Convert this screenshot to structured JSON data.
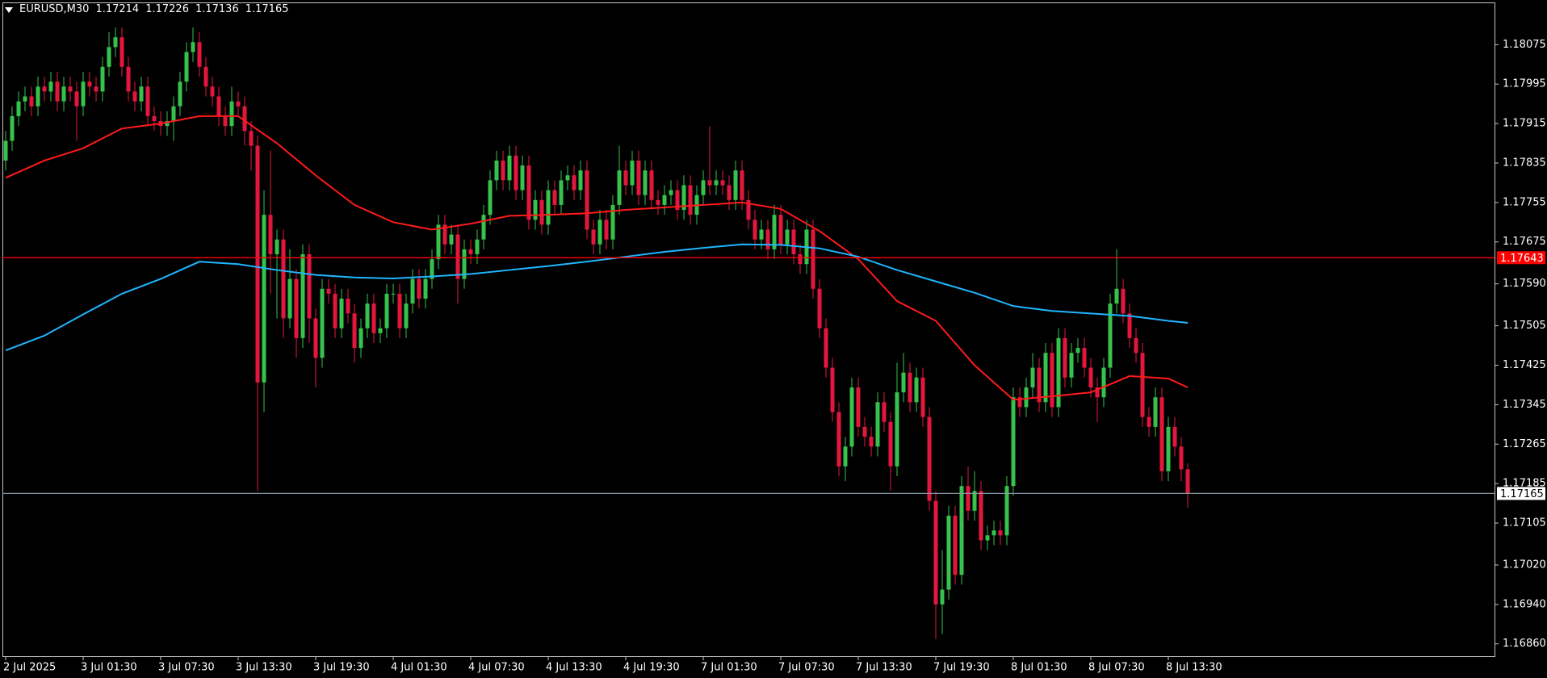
{
  "chart_data": {
    "type": "candlestick",
    "symbol": "EURUSD,M30",
    "ohlc": [
      1.17214,
      1.17226,
      1.17136,
      1.17165
    ],
    "up_color": "#36c24c",
    "down_color": "#e3173e",
    "categories": [
      "2 Jul 2025",
      null,
      null,
      null,
      null,
      null,
      null,
      null,
      null,
      null,
      null,
      null,
      "3 Jul 01:30",
      null,
      null,
      null,
      null,
      null,
      null,
      null,
      null,
      null,
      null,
      null,
      "3 Jul 07:30",
      null,
      null,
      null,
      null,
      null,
      null,
      null,
      null,
      null,
      null,
      null,
      "3 Jul 13:30",
      null,
      null,
      null,
      null,
      null,
      null,
      null,
      null,
      null,
      null,
      null,
      "3 Jul 19:30",
      null,
      null,
      null,
      null,
      null,
      null,
      null,
      null,
      null,
      null,
      null,
      "4 Jul 01:30",
      null,
      null,
      null,
      null,
      null,
      null,
      null,
      null,
      null,
      null,
      null,
      "4 Jul 07:30",
      null,
      null,
      null,
      null,
      null,
      null,
      null,
      null,
      null,
      null,
      null,
      "4 Jul 13:30",
      null,
      null,
      null,
      null,
      null,
      null,
      null,
      null,
      null,
      null,
      null,
      "4 Jul 19:30",
      null,
      null,
      null,
      null,
      null,
      null,
      null,
      null,
      null,
      null,
      null,
      "7 Jul 01:30",
      null,
      null,
      null,
      null,
      null,
      null,
      null,
      null,
      null,
      null,
      null,
      "7 Jul 07:30",
      null,
      null,
      null,
      null,
      null,
      null,
      null,
      null,
      null,
      null,
      null,
      "7 Jul 13:30",
      null,
      null,
      null,
      null,
      null,
      null,
      null,
      null,
      null,
      null,
      null,
      "7 Jul 19:30",
      null,
      null,
      null,
      null,
      null,
      null,
      null,
      null,
      null,
      null,
      null,
      "8 Jul 01:30",
      null,
      null,
      null,
      null,
      null,
      null,
      null,
      null,
      null,
      null,
      null,
      "8 Jul 07:30",
      null,
      null,
      null,
      null,
      null,
      null,
      null,
      null,
      null,
      null,
      null,
      "8 Jul 13:30",
      null,
      null,
      null
    ],
    "open": [
      1.1784,
      1.1788,
      1.1793,
      1.1796,
      1.1797,
      1.1795,
      1.1799,
      1.1798,
      1.18,
      1.1796,
      1.1799,
      1.1798,
      1.1795,
      1.18,
      1.1799,
      1.1798,
      1.1803,
      1.1807,
      1.1809,
      1.1803,
      1.1798,
      1.1796,
      1.1799,
      1.1793,
      1.1792,
      1.1791,
      1.1792,
      1.1795,
      1.18,
      1.1806,
      1.1808,
      1.1803,
      1.1799,
      1.1797,
      1.1793,
      1.1791,
      1.1796,
      1.1795,
      1.179,
      1.1787,
      1.1739,
      1.1773,
      1.1765,
      1.1768,
      1.1752,
      1.176,
      1.1748,
      1.1765,
      1.1752,
      1.1744,
      1.1758,
      1.1757,
      1.175,
      1.1756,
      1.1753,
      1.1746,
      1.175,
      1.1755,
      1.1749,
      1.175,
      1.1757,
      1.1757,
      1.175,
      1.1755,
      1.176,
      1.1756,
      1.176,
      1.1764,
      1.1771,
      1.1767,
      1.1769,
      1.176,
      1.1766,
      1.1765,
      1.1768,
      1.1773,
      1.178,
      1.1784,
      1.178,
      1.1785,
      1.1778,
      1.1783,
      1.1772,
      1.1776,
      1.1771,
      1.1778,
      1.1775,
      1.178,
      1.1781,
      1.1778,
      1.1782,
      1.177,
      1.1767,
      1.1772,
      1.1768,
      1.1775,
      1.1782,
      1.1779,
      1.1784,
      1.1777,
      1.1782,
      1.1776,
      1.1775,
      1.1777,
      1.1778,
      1.1774,
      1.1779,
      1.1773,
      1.1777,
      1.178,
      1.1779,
      1.178,
      1.1779,
      1.1776,
      1.1782,
      1.1776,
      1.1772,
      1.1768,
      1.177,
      1.1766,
      1.1773,
      1.1767,
      1.177,
      1.1765,
      1.1763,
      1.177,
      1.1758,
      1.175,
      1.1742,
      1.1733,
      1.1722,
      1.1726,
      1.1738,
      1.173,
      1.1728,
      1.1726,
      1.1735,
      1.1731,
      1.1722,
      1.1737,
      1.1741,
      1.1735,
      1.174,
      1.1732,
      1.1715,
      1.1694,
      1.1697,
      1.1712,
      1.17,
      1.1718,
      1.1713,
      1.1717,
      1.1707,
      1.1708,
      1.1709,
      1.1708,
      1.1718,
      1.1736,
      1.1734,
      1.1738,
      1.1742,
      1.1735,
      1.1745,
      1.1734,
      1.1748,
      1.174,
      1.1745,
      1.1746,
      1.1742,
      1.1738,
      1.1736,
      1.1742,
      1.1755,
      1.1758,
      1.1753,
      1.1748,
      1.1745,
      1.1732,
      1.173,
      1.1736,
      1.1721,
      1.173,
      1.1726,
      1.17214
    ],
    "high": [
      1.179,
      1.1795,
      1.1798,
      1.1799,
      1.1799,
      1.1801,
      1.1801,
      1.1802,
      1.1802,
      1.1801,
      1.1801,
      1.18,
      1.1802,
      1.1802,
      1.1801,
      1.1805,
      1.181,
      1.1811,
      1.1811,
      1.1805,
      1.18,
      1.1801,
      1.1801,
      1.1795,
      1.1794,
      1.1794,
      1.1797,
      1.1802,
      1.1808,
      1.1811,
      1.181,
      1.1805,
      1.1801,
      1.1799,
      1.1795,
      1.1799,
      1.1798,
      1.1797,
      1.1792,
      1.1789,
      1.1778,
      1.1786,
      1.177,
      1.177,
      1.1766,
      1.1762,
      1.1767,
      1.1767,
      1.1754,
      1.176,
      1.176,
      1.1759,
      1.1758,
      1.1758,
      1.1755,
      1.1752,
      1.1757,
      1.1757,
      1.1752,
      1.1759,
      1.1759,
      1.1759,
      1.1757,
      1.1762,
      1.1762,
      1.1762,
      1.1766,
      1.1773,
      1.1773,
      1.1771,
      1.1771,
      1.1768,
      1.1768,
      1.177,
      1.1775,
      1.1782,
      1.1786,
      1.1786,
      1.1787,
      1.1787,
      1.1785,
      1.1785,
      1.1778,
      1.1778,
      1.178,
      1.178,
      1.1782,
      1.1783,
      1.1783,
      1.1784,
      1.1784,
      1.1772,
      1.1774,
      1.1774,
      1.1777,
      1.1787,
      1.1784,
      1.1786,
      1.1786,
      1.1784,
      1.1784,
      1.1778,
      1.1779,
      1.178,
      1.178,
      1.1781,
      1.1781,
      1.1779,
      1.1782,
      1.1791,
      1.1782,
      1.1782,
      1.1781,
      1.1784,
      1.1784,
      1.1778,
      1.1774,
      1.1772,
      1.1772,
      1.1775,
      1.1775,
      1.1772,
      1.1772,
      1.1767,
      1.1772,
      1.1772,
      1.176,
      1.1752,
      1.1744,
      1.1735,
      1.1728,
      1.174,
      1.174,
      1.1732,
      1.173,
      1.1737,
      1.1737,
      1.1733,
      1.1743,
      1.1745,
      1.1743,
      1.1742,
      1.1742,
      1.1734,
      1.1717,
      1.1705,
      1.1714,
      1.1714,
      1.172,
      1.1722,
      1.1721,
      1.1719,
      1.171,
      1.1711,
      1.1711,
      1.172,
      1.1738,
      1.1738,
      1.174,
      1.1745,
      1.1744,
      1.1747,
      1.1747,
      1.175,
      1.175,
      1.1747,
      1.1748,
      1.1748,
      1.1744,
      1.174,
      1.1744,
      1.1757,
      1.1766,
      1.176,
      1.1755,
      1.175,
      1.1747,
      1.1734,
      1.1738,
      1.1738,
      1.1732,
      1.1732,
      1.1728,
      1.17226
    ],
    "low": [
      1.1782,
      1.1786,
      1.1791,
      1.1794,
      1.1793,
      1.1793,
      1.1796,
      1.1796,
      1.1794,
      1.1794,
      1.1796,
      1.1788,
      1.1793,
      1.1797,
      1.1796,
      1.1796,
      1.1801,
      1.1805,
      1.1801,
      1.1796,
      1.1794,
      1.1794,
      1.1791,
      1.179,
      1.1789,
      1.1789,
      1.1788,
      1.1793,
      1.1798,
      1.1804,
      1.1801,
      1.1797,
      1.1795,
      1.1791,
      1.1789,
      1.1789,
      1.1793,
      1.1787,
      1.1782,
      1.1717,
      1.1733,
      1.1757,
      1.1752,
      1.1748,
      1.175,
      1.1744,
      1.1746,
      1.1747,
      1.1738,
      1.1742,
      1.1755,
      1.1748,
      1.1748,
      1.1751,
      1.1743,
      1.1744,
      1.1748,
      1.1747,
      1.1747,
      1.1748,
      1.1755,
      1.1748,
      1.1748,
      1.1753,
      1.1754,
      1.1754,
      1.1758,
      1.1762,
      1.1765,
      1.1765,
      1.1755,
      1.1758,
      1.1763,
      1.1763,
      1.1766,
      1.1771,
      1.1778,
      1.1778,
      1.1778,
      1.1776,
      1.1776,
      1.177,
      1.177,
      1.1769,
      1.1769,
      1.1773,
      1.1773,
      1.1778,
      1.1776,
      1.1776,
      1.1768,
      1.1765,
      1.1765,
      1.1766,
      1.1766,
      1.1773,
      1.1777,
      1.1777,
      1.1775,
      1.1775,
      1.1774,
      1.1773,
      1.1773,
      1.1775,
      1.1772,
      1.1772,
      1.1771,
      1.1771,
      1.1775,
      1.1777,
      1.1777,
      1.1777,
      1.1774,
      1.1774,
      1.1774,
      1.177,
      1.1766,
      1.1766,
      1.1764,
      1.1764,
      1.1765,
      1.1765,
      1.1763,
      1.1761,
      1.1761,
      1.1756,
      1.1748,
      1.174,
      1.1731,
      1.172,
      1.1719,
      1.1724,
      1.1728,
      1.1726,
      1.1724,
      1.1724,
      1.1729,
      1.1717,
      1.172,
      1.1735,
      1.1733,
      1.1733,
      1.173,
      1.1713,
      1.1687,
      1.1688,
      1.1695,
      1.1698,
      1.1698,
      1.1711,
      1.1711,
      1.1705,
      1.1705,
      1.1706,
      1.1706,
      1.1706,
      1.1716,
      1.1732,
      1.1732,
      1.1736,
      1.1733,
      1.1733,
      1.1732,
      1.1732,
      1.1738,
      1.1738,
      1.1743,
      1.174,
      1.1736,
      1.1731,
      1.1734,
      1.174,
      1.1753,
      1.1751,
      1.1746,
      1.1743,
      1.173,
      1.1728,
      1.1728,
      1.1719,
      1.1719,
      1.1724,
      1.1719,
      1.17136
    ],
    "close": [
      1.1788,
      1.1793,
      1.1796,
      1.1797,
      1.1795,
      1.1799,
      1.1798,
      1.18,
      1.1796,
      1.1799,
      1.1798,
      1.1795,
      1.18,
      1.1799,
      1.1798,
      1.1803,
      1.1807,
      1.1809,
      1.1803,
      1.1798,
      1.1796,
      1.1799,
      1.1793,
      1.1792,
      1.1791,
      1.1792,
      1.1795,
      1.18,
      1.1806,
      1.1808,
      1.1803,
      1.1799,
      1.1797,
      1.1793,
      1.1791,
      1.1796,
      1.1795,
      1.179,
      1.1787,
      1.1739,
      1.1773,
      1.1765,
      1.1768,
      1.1752,
      1.176,
      1.1748,
      1.1765,
      1.1752,
      1.1744,
      1.1758,
      1.1757,
      1.175,
      1.1756,
      1.1753,
      1.1746,
      1.175,
      1.1755,
      1.1749,
      1.175,
      1.1757,
      1.1757,
      1.175,
      1.1755,
      1.176,
      1.1756,
      1.176,
      1.1764,
      1.1771,
      1.1767,
      1.1769,
      1.176,
      1.1766,
      1.1765,
      1.1768,
      1.1773,
      1.178,
      1.1784,
      1.178,
      1.1785,
      1.1778,
      1.1783,
      1.1772,
      1.1776,
      1.1771,
      1.1778,
      1.1775,
      1.178,
      1.1781,
      1.1778,
      1.1782,
      1.177,
      1.1767,
      1.1772,
      1.1768,
      1.1775,
      1.1782,
      1.1779,
      1.1784,
      1.1777,
      1.1782,
      1.1776,
      1.1775,
      1.1777,
      1.1778,
      1.1774,
      1.1779,
      1.1773,
      1.1777,
      1.178,
      1.1779,
      1.178,
      1.1779,
      1.1776,
      1.1782,
      1.1776,
      1.1772,
      1.1768,
      1.177,
      1.1766,
      1.1773,
      1.1767,
      1.177,
      1.1765,
      1.1763,
      1.177,
      1.1758,
      1.175,
      1.1742,
      1.1733,
      1.1722,
      1.1726,
      1.1738,
      1.173,
      1.1728,
      1.1726,
      1.1735,
      1.1731,
      1.1722,
      1.1737,
      1.1741,
      1.1735,
      1.174,
      1.1732,
      1.1715,
      1.1694,
      1.1697,
      1.1712,
      1.17,
      1.1718,
      1.1713,
      1.1717,
      1.1707,
      1.1708,
      1.1709,
      1.1708,
      1.1718,
      1.1736,
      1.1734,
      1.1738,
      1.1742,
      1.1735,
      1.1745,
      1.1734,
      1.1748,
      1.174,
      1.1745,
      1.1746,
      1.1742,
      1.1738,
      1.1736,
      1.1742,
      1.1755,
      1.1758,
      1.1753,
      1.1748,
      1.1745,
      1.1732,
      1.173,
      1.1736,
      1.1721,
      1.173,
      1.1726,
      1.17214,
      1.17165
    ],
    "lines": [
      {
        "color": "#ff1a1a",
        "x": [
          0,
          6,
          12,
          18,
          24,
          30,
          36,
          42,
          48,
          54,
          60,
          66,
          72,
          78,
          84,
          90,
          96,
          102,
          108,
          114,
          120,
          126,
          132,
          138,
          144,
          150,
          156,
          162,
          168,
          174,
          180,
          183
        ],
        "values": [
          1.17805,
          1.1784,
          1.17865,
          1.17905,
          1.17915,
          1.1793,
          1.1793,
          1.17875,
          1.1781,
          1.1775,
          1.17715,
          1.177,
          1.17712,
          1.17728,
          1.1773,
          1.17733,
          1.1774,
          1.17745,
          1.1775,
          1.17755,
          1.17742,
          1.17697,
          1.1764,
          1.17555,
          1.17515,
          1.17425,
          1.17355,
          1.17362,
          1.1737,
          1.17403,
          1.17398,
          1.1738
        ]
      },
      {
        "color": "#1fb6ff",
        "x": [
          0,
          6,
          12,
          18,
          24,
          30,
          36,
          42,
          48,
          54,
          60,
          66,
          72,
          78,
          84,
          90,
          96,
          102,
          108,
          114,
          120,
          126,
          132,
          138,
          144,
          150,
          156,
          162,
          168,
          174,
          180,
          183
        ],
        "values": [
          1.17455,
          1.17485,
          1.17528,
          1.1757,
          1.176,
          1.17635,
          1.1763,
          1.17618,
          1.17608,
          1.17603,
          1.17601,
          1.17605,
          1.1761,
          1.17618,
          1.17626,
          1.17635,
          1.17645,
          1.17655,
          1.17663,
          1.1767,
          1.17669,
          1.17662,
          1.17645,
          1.17618,
          1.17595,
          1.17572,
          1.17545,
          1.17535,
          1.1753,
          1.17525,
          1.17515,
          1.17511
        ]
      }
    ],
    "levels": [
      {
        "value": 1.17643,
        "color": "#ff0000"
      },
      {
        "value": 1.17165,
        "color": "#8a9aa8"
      }
    ],
    "ylim": [
      1.16835,
      1.18159
    ],
    "yticks": [
      1.18075,
      1.17995,
      1.17915,
      1.17835,
      1.17755,
      1.17675,
      {
        "value": 1.1759,
        "label": "1.17590"
      },
      1.17505,
      1.17425,
      1.17345,
      1.17265,
      1.17185,
      1.17105,
      {
        "value": 1.1702,
        "label": "1.17020"
      },
      {
        "value": 1.1694,
        "label": "1.16940"
      },
      {
        "value": 1.1686,
        "label": "1.16860"
      }
    ]
  }
}
